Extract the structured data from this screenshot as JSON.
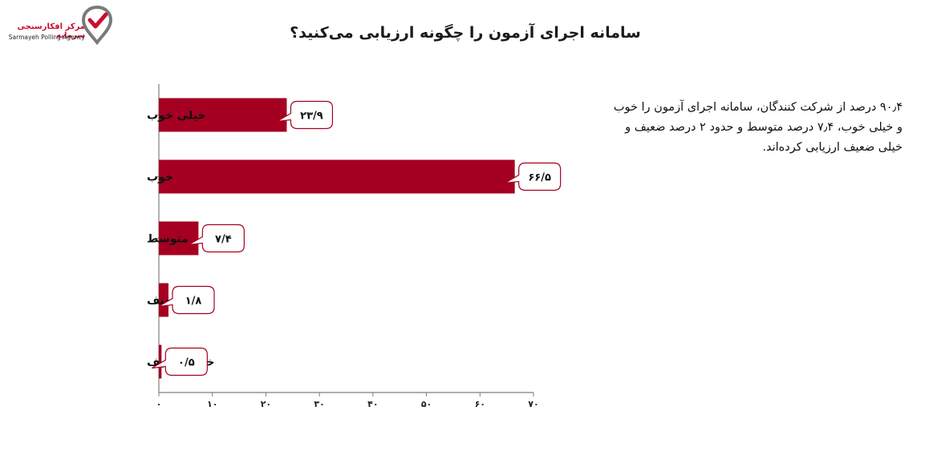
{
  "logo": {
    "name_fa": "مرکز افکارسنجی سرمایه",
    "name_en": "Sarmayeh Polling Agency"
  },
  "title": "سامانه اجرای آزمون را چگونه ارزیابی می‌کنید؟",
  "summary": "۹۰٫۴ درصد از شرکت کنندگان، سامانه اجرای آزمون را خوب و خیلی خوب، ۷٫۴ درصد متوسط و حدود ۲ درصد ضعیف و خیلی ضعیف ارزیابی کرده‌اند.",
  "colors": {
    "bar": "#a50021",
    "axis": "#7f7f7f",
    "callout_border": "#a50021"
  },
  "chart_data": {
    "type": "bar",
    "orientation": "horizontal",
    "categories": [
      "خیلی خوب",
      "خوب",
      "متوسط",
      "ضعیف",
      "خیلی ضعیف"
    ],
    "values": [
      23.9,
      66.5,
      7.4,
      1.8,
      0.5
    ],
    "value_labels": [
      "۲۳/۹",
      "۶۶/۵",
      "۷/۴",
      "۱/۸",
      "۰/۵"
    ],
    "xlim": [
      0,
      70
    ],
    "xticks": [
      0,
      10,
      20,
      30,
      40,
      50,
      60,
      70
    ],
    "xtick_labels": [
      "۰",
      "۱۰",
      "۲۰",
      "۳۰",
      "۴۰",
      "۵۰",
      "۶۰",
      "۷۰"
    ],
    "grid": false,
    "legend": "none"
  }
}
